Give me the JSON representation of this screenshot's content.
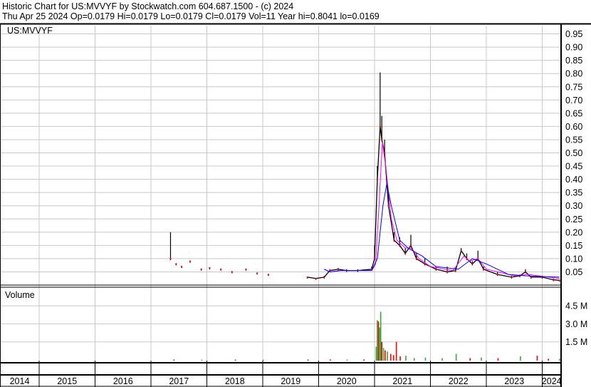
{
  "header": {
    "title": "Historic Chart for US:MVVYF by Stockwatch.com 604.687.1500 - (c) 2024",
    "quote": "Thu Apr 25 2024   Op=0.0179   Hi=0.0179   Lo=0.0179   Cl=0.0179   Vol=11   Year hi=0.8041   lo=0.0169"
  },
  "chart_data": {
    "type": "line",
    "symbol_label": "US:MVVYF",
    "volume_label": "Volume",
    "colors": {
      "price": "#000000",
      "close_dot": "#ff0000",
      "ma_short": "#ff00ff",
      "ma_long": "#0000ff",
      "vol_up": "#33aa33",
      "vol_down": "#ff0000",
      "grid": "#c8c8c8"
    },
    "x_range": [
      2013.7,
      2024.34
    ],
    "years": [
      "2014",
      "2015",
      "2016",
      "2017",
      "2018",
      "2019",
      "2020",
      "2021",
      "2022",
      "2023",
      "2024"
    ],
    "price_ylim": [
      0,
      0.975
    ],
    "price_ticks": [
      "0.05",
      "0.10",
      "0.15",
      "0.20",
      "0.25",
      "0.30",
      "0.35",
      "0.40",
      "0.45",
      "0.50",
      "0.55",
      "0.60",
      "0.65",
      "0.70",
      "0.75",
      "0.80",
      "0.85",
      "0.90",
      "0.95"
    ],
    "volume_ylim_m": [
      0,
      5.8
    ],
    "volume_ticks": [
      "1.5 M",
      "3.0 M",
      "4.5 M"
    ],
    "grid": true,
    "price": [
      [
        2017.35,
        0.2,
        0.1
      ],
      [
        2017.45,
        0.08,
        0.08
      ],
      [
        2017.55,
        0.07,
        0.07
      ],
      [
        2017.7,
        0.09,
        0.09
      ],
      [
        2017.9,
        0.06,
        0.06
      ],
      [
        2018.05,
        0.065,
        0.065
      ],
      [
        2018.25,
        0.06,
        0.06
      ],
      [
        2018.45,
        0.05,
        0.05
      ],
      [
        2018.7,
        0.06,
        0.06
      ],
      [
        2018.9,
        0.045,
        0.045
      ],
      [
        2019.1,
        0.04,
        0.04
      ],
      [
        2019.8,
        0.03,
        0.03
      ],
      [
        2019.95,
        0.025,
        0.025
      ],
      [
        2020.1,
        0.035,
        0.03
      ],
      [
        2020.2,
        0.06,
        0.055
      ],
      [
        2020.35,
        0.065,
        0.06
      ],
      [
        2020.5,
        0.06,
        0.055
      ],
      [
        2020.7,
        0.06,
        0.055
      ],
      [
        2020.95,
        0.07,
        0.06
      ],
      [
        2021.0,
        0.15,
        0.1
      ],
      [
        2021.05,
        0.45,
        0.4
      ],
      [
        2021.1,
        0.8041,
        0.6
      ],
      [
        2021.13,
        0.64,
        0.55
      ],
      [
        2021.18,
        0.55,
        0.5
      ],
      [
        2021.25,
        0.35,
        0.3
      ],
      [
        2021.35,
        0.2,
        0.17
      ],
      [
        2021.45,
        0.18,
        0.15
      ],
      [
        2021.55,
        0.14,
        0.12
      ],
      [
        2021.65,
        0.19,
        0.15
      ],
      [
        2021.75,
        0.12,
        0.1
      ],
      [
        2021.9,
        0.1,
        0.08
      ],
      [
        2022.1,
        0.07,
        0.06
      ],
      [
        2022.3,
        0.07,
        0.05
      ],
      [
        2022.45,
        0.065,
        0.055
      ],
      [
        2022.55,
        0.14,
        0.13
      ],
      [
        2022.65,
        0.12,
        0.1
      ],
      [
        2022.75,
        0.09,
        0.08
      ],
      [
        2022.85,
        0.13,
        0.1
      ],
      [
        2022.95,
        0.07,
        0.06
      ],
      [
        2023.2,
        0.05,
        0.04
      ],
      [
        2023.45,
        0.035,
        0.03
      ],
      [
        2023.6,
        0.04,
        0.035
      ],
      [
        2023.7,
        0.06,
        0.05
      ],
      [
        2023.8,
        0.035,
        0.03
      ],
      [
        2024.0,
        0.035,
        0.03
      ],
      [
        2024.2,
        0.025,
        0.02
      ],
      [
        2024.31,
        0.0179,
        0.0179
      ]
    ],
    "ma_short": [
      [
        2020.1,
        0.06
      ],
      [
        2020.2,
        0.05
      ],
      [
        2020.4,
        0.055
      ],
      [
        2020.95,
        0.055
      ],
      [
        2021.02,
        0.08
      ],
      [
        2021.08,
        0.3
      ],
      [
        2021.14,
        0.54
      ],
      [
        2021.2,
        0.45
      ],
      [
        2021.3,
        0.25
      ],
      [
        2021.4,
        0.17
      ],
      [
        2021.55,
        0.14
      ],
      [
        2021.65,
        0.14
      ],
      [
        2021.8,
        0.1
      ],
      [
        2022.0,
        0.07
      ],
      [
        2022.4,
        0.055
      ],
      [
        2022.6,
        0.11
      ],
      [
        2022.7,
        0.09
      ],
      [
        2022.85,
        0.1
      ],
      [
        2023.0,
        0.06
      ],
      [
        2023.5,
        0.035
      ],
      [
        2023.75,
        0.04
      ],
      [
        2024.31,
        0.025
      ]
    ],
    "ma_long": [
      [
        2020.1,
        0.06
      ],
      [
        2020.2,
        0.05
      ],
      [
        2020.4,
        0.055
      ],
      [
        2020.95,
        0.055
      ],
      [
        2021.05,
        0.1
      ],
      [
        2021.15,
        0.3
      ],
      [
        2021.22,
        0.385
      ],
      [
        2021.3,
        0.3
      ],
      [
        2021.45,
        0.17
      ],
      [
        2021.6,
        0.14
      ],
      [
        2021.85,
        0.11
      ],
      [
        2022.1,
        0.07
      ],
      [
        2022.5,
        0.06
      ],
      [
        2022.75,
        0.1
      ],
      [
        2023.0,
        0.08
      ],
      [
        2023.4,
        0.04
      ],
      [
        2023.7,
        0.035
      ],
      [
        2024.31,
        0.03
      ]
    ],
    "volume": [
      [
        2017.4,
        0.03,
        "down"
      ],
      [
        2017.9,
        0.02,
        "up"
      ],
      [
        2018.5,
        0.03,
        "down"
      ],
      [
        2019.0,
        0.02,
        "up"
      ],
      [
        2019.8,
        0.03,
        "down"
      ],
      [
        2020.2,
        0.04,
        "down"
      ],
      [
        2020.5,
        0.03,
        "up"
      ],
      [
        2020.8,
        0.04,
        "down"
      ],
      [
        2021.02,
        1.1,
        "up"
      ],
      [
        2021.04,
        3.3,
        "up"
      ],
      [
        2021.06,
        3.2,
        "down"
      ],
      [
        2021.08,
        2.7,
        "up"
      ],
      [
        2021.1,
        4.0,
        "up"
      ],
      [
        2021.12,
        1.5,
        "down"
      ],
      [
        2021.15,
        1.0,
        "up"
      ],
      [
        2021.18,
        0.8,
        "down"
      ],
      [
        2021.22,
        0.7,
        "up"
      ],
      [
        2021.28,
        0.5,
        "down"
      ],
      [
        2021.33,
        0.4,
        "down"
      ],
      [
        2021.38,
        1.5,
        "down"
      ],
      [
        2021.45,
        0.3,
        "down"
      ],
      [
        2021.55,
        0.35,
        "up"
      ],
      [
        2021.7,
        0.15,
        "up"
      ],
      [
        2021.9,
        0.2,
        "up"
      ],
      [
        2022.2,
        0.15,
        "up"
      ],
      [
        2022.45,
        0.5,
        "up"
      ],
      [
        2022.7,
        0.15,
        "down"
      ],
      [
        2022.9,
        0.2,
        "up"
      ],
      [
        2023.2,
        0.15,
        "down"
      ],
      [
        2023.6,
        0.3,
        "up"
      ],
      [
        2023.9,
        0.35,
        "down"
      ],
      [
        2024.1,
        0.1,
        "down"
      ],
      [
        2024.3,
        0.1,
        "up"
      ]
    ]
  }
}
